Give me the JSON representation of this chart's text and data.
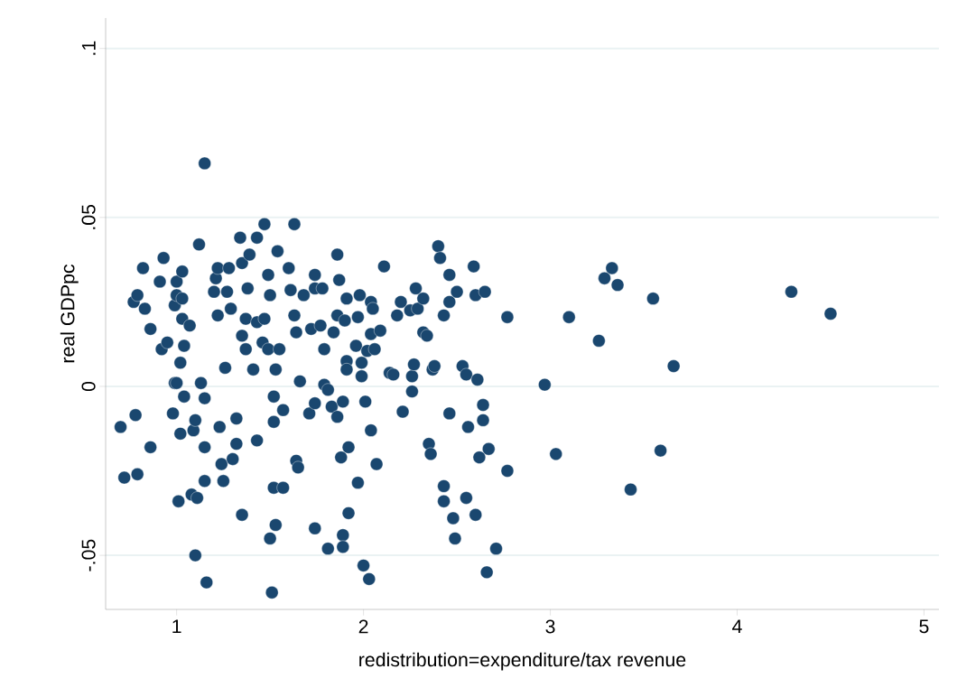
{
  "chart_data": {
    "type": "scatter",
    "xlabel": "redistribution=expenditure/tax revenue",
    "ylabel": "real GDPpc",
    "xlim": [
      0.62,
      5.08
    ],
    "ylim": [
      -0.066,
      0.109
    ],
    "xticks": [
      1,
      2,
      3,
      4,
      5
    ],
    "yticks": [
      {
        "value": -0.05,
        "label": "-.05"
      },
      {
        "value": 0,
        "label": "0"
      },
      {
        "value": 0.05,
        "label": ".05"
      },
      {
        "value": 0.1,
        "label": ".1"
      }
    ],
    "grid": "y",
    "series": [
      {
        "color": "#1a476f",
        "x": [
          0.7,
          0.72,
          0.78,
          0.79,
          0.82,
          0.77,
          0.79,
          0.83,
          0.86,
          0.86,
          0.92,
          0.93,
          0.91,
          0.95,
          0.98,
          0.99,
          0.99,
          1.0,
          1.0,
          1.03,
          1.0,
          1.02,
          1.03,
          1.04,
          1.02,
          1.03,
          1.01,
          1.04,
          1.07,
          1.08,
          1.09,
          1.1,
          1.12,
          1.1,
          1.11,
          1.13,
          1.15,
          1.15,
          1.15,
          1.16,
          1.15,
          1.2,
          1.21,
          1.22,
          1.22,
          1.23,
          1.24,
          1.25,
          1.26,
          1.27,
          1.28,
          1.29,
          1.32,
          1.32,
          1.3,
          1.34,
          1.35,
          1.35,
          1.35,
          1.37,
          1.37,
          1.38,
          1.39,
          1.41,
          1.43,
          1.43,
          1.43,
          1.46,
          1.47,
          1.47,
          1.49,
          1.49,
          1.5,
          1.5,
          1.51,
          1.53,
          1.52,
          1.52,
          1.53,
          1.52,
          1.54,
          1.55,
          1.57,
          1.57,
          1.6,
          1.61,
          1.63,
          1.63,
          1.64,
          1.64,
          1.65,
          1.66,
          1.68,
          1.71,
          1.72,
          1.74,
          1.74,
          1.74,
          1.74,
          1.77,
          1.78,
          1.79,
          1.79,
          1.81,
          1.81,
          1.83,
          1.84,
          1.86,
          1.86,
          1.86,
          1.87,
          1.88,
          1.89,
          1.89,
          1.89,
          1.9,
          1.91,
          1.91,
          1.91,
          1.92,
          1.92,
          1.96,
          1.97,
          1.97,
          1.98,
          1.99,
          1.99,
          2.0,
          2.01,
          2.02,
          2.03,
          2.04,
          2.04,
          2.04,
          2.05,
          2.06,
          2.07,
          2.09,
          2.11,
          2.14,
          2.16,
          2.18,
          2.2,
          2.21,
          2.25,
          2.26,
          2.26,
          2.27,
          2.28,
          2.29,
          2.32,
          2.32,
          2.34,
          2.35,
          2.36,
          2.37,
          2.38,
          2.4,
          2.41,
          2.43,
          2.43,
          2.43,
          2.46,
          2.46,
          2.46,
          2.48,
          2.49,
          2.5,
          2.53,
          2.55,
          2.56,
          2.55,
          2.59,
          2.6,
          2.6,
          2.61,
          2.62,
          2.64,
          2.64,
          2.65,
          2.66,
          2.67,
          2.71,
          2.77,
          2.77,
          2.97,
          3.03,
          3.1,
          3.26,
          3.29,
          3.33,
          3.36,
          3.43,
          3.55,
          3.59,
          3.66,
          4.29,
          4.5
        ],
        "values": [
          -0.012,
          -0.027,
          -0.0085,
          -0.026,
          0.035,
          0.025,
          0.027,
          0.023,
          0.017,
          -0.018,
          0.011,
          0.038,
          0.031,
          0.013,
          -0.008,
          0.001,
          0.024,
          0.031,
          0.027,
          0.034,
          0.001,
          0.007,
          0.026,
          0.012,
          -0.014,
          0.02,
          -0.034,
          -0.003,
          0.018,
          -0.032,
          -0.013,
          -0.01,
          0.042,
          -0.05,
          -0.033,
          0.001,
          0.066,
          -0.0035,
          -0.018,
          -0.058,
          -0.028,
          0.028,
          0.032,
          0.035,
          0.021,
          -0.012,
          -0.023,
          -0.028,
          0.0055,
          0.028,
          0.035,
          0.023,
          -0.0095,
          -0.017,
          -0.0215,
          0.044,
          0.0365,
          0.015,
          -0.038,
          0.011,
          0.02,
          0.029,
          0.039,
          0.005,
          0.019,
          0.044,
          -0.016,
          0.013,
          0.02,
          0.048,
          0.033,
          0.011,
          0.027,
          -0.045,
          -0.061,
          0.005,
          -0.003,
          -0.0105,
          -0.041,
          -0.03,
          0.04,
          0.011,
          -0.007,
          -0.03,
          0.035,
          0.0285,
          0.048,
          0.021,
          0.016,
          -0.022,
          -0.024,
          0.0015,
          0.027,
          -0.008,
          0.017,
          0.033,
          0.029,
          -0.005,
          -0.042,
          0.018,
          0.029,
          0.011,
          0.0005,
          -0.048,
          -0.001,
          -0.006,
          0.016,
          0.039,
          0.021,
          -0.009,
          0.0315,
          -0.021,
          -0.0045,
          -0.044,
          -0.0475,
          0.0195,
          0.026,
          0.0075,
          0.005,
          -0.018,
          -0.0375,
          0.012,
          0.0205,
          -0.0285,
          0.027,
          0.007,
          0.003,
          -0.053,
          -0.0045,
          0.0105,
          -0.057,
          0.025,
          0.0155,
          -0.013,
          0.023,
          0.011,
          -0.023,
          0.0165,
          0.0355,
          0.004,
          0.0035,
          0.021,
          0.025,
          -0.0075,
          0.0225,
          -0.0015,
          0.003,
          0.0065,
          0.029,
          0.023,
          0.026,
          0.016,
          0.015,
          -0.017,
          -0.02,
          0.005,
          0.006,
          0.0415,
          0.038,
          0.021,
          -0.034,
          -0.0295,
          0.025,
          0.033,
          -0.008,
          -0.039,
          -0.045,
          0.028,
          0.006,
          0.0035,
          -0.012,
          -0.033,
          0.0355,
          0.027,
          -0.038,
          0.002,
          -0.021,
          -0.0055,
          -0.01,
          0.028,
          -0.055,
          -0.0185,
          -0.048,
          0.0205,
          -0.025,
          0.0005,
          -0.02,
          0.0205,
          0.0135,
          0.032,
          0.035,
          0.03,
          -0.0305,
          0.026,
          -0.019,
          0.006,
          0.028,
          0.0215
        ]
      }
    ]
  }
}
